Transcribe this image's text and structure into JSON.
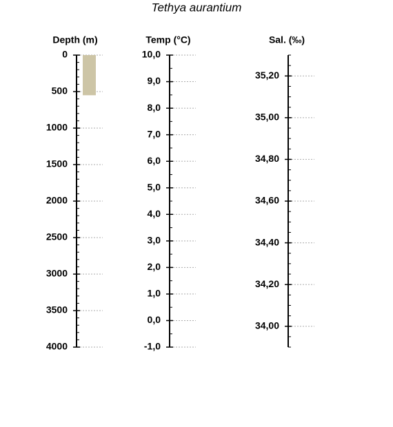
{
  "title": "Tethya aurantium",
  "chart_data": [
    {
      "type": "bar",
      "y_label": "Depth (m)",
      "reversed": true,
      "categories": [
        null
      ],
      "values": [
        550
      ],
      "color": "#cdc5a6",
      "ylim": [
        0,
        4000
      ],
      "yticks": [
        0,
        500,
        1000,
        1500,
        2000,
        2500,
        3000,
        3500,
        4000
      ],
      "grid": true
    },
    {
      "type": "axis",
      "y_label": "Temp (°C)",
      "ylim": [
        10,
        -1
      ],
      "yticks": [
        {
          "value": 10,
          "label": "10,0"
        },
        {
          "value": 9,
          "label": "9,0"
        },
        {
          "value": 8,
          "label": "8,0"
        },
        {
          "value": 7,
          "label": "7,0"
        },
        {
          "value": 6,
          "label": "6,0"
        },
        {
          "value": 5,
          "label": "5,0"
        },
        {
          "value": 4,
          "label": "4,0"
        },
        {
          "value": 3,
          "label": "3,0"
        },
        {
          "value": 2,
          "label": "2,0"
        },
        {
          "value": 1,
          "label": "1,0"
        },
        {
          "value": 0,
          "label": "0,0"
        },
        {
          "value": -1,
          "label": "-1,0"
        }
      ],
      "grid": true
    },
    {
      "type": "axis",
      "y_label": "Sal. (‰)",
      "ylim": [
        35.3,
        33.9
      ],
      "yticks": [
        {
          "value": 35.2,
          "label": "35,20"
        },
        {
          "value": 35,
          "label": "35,00"
        },
        {
          "value": 34.8,
          "label": "34,80"
        },
        {
          "value": 34.6,
          "label": "34,60"
        },
        {
          "value": 34.4,
          "label": "34,40"
        },
        {
          "value": 34.2,
          "label": "34,20"
        },
        {
          "value": 34,
          "label": "34,00"
        }
      ],
      "grid": true
    }
  ]
}
